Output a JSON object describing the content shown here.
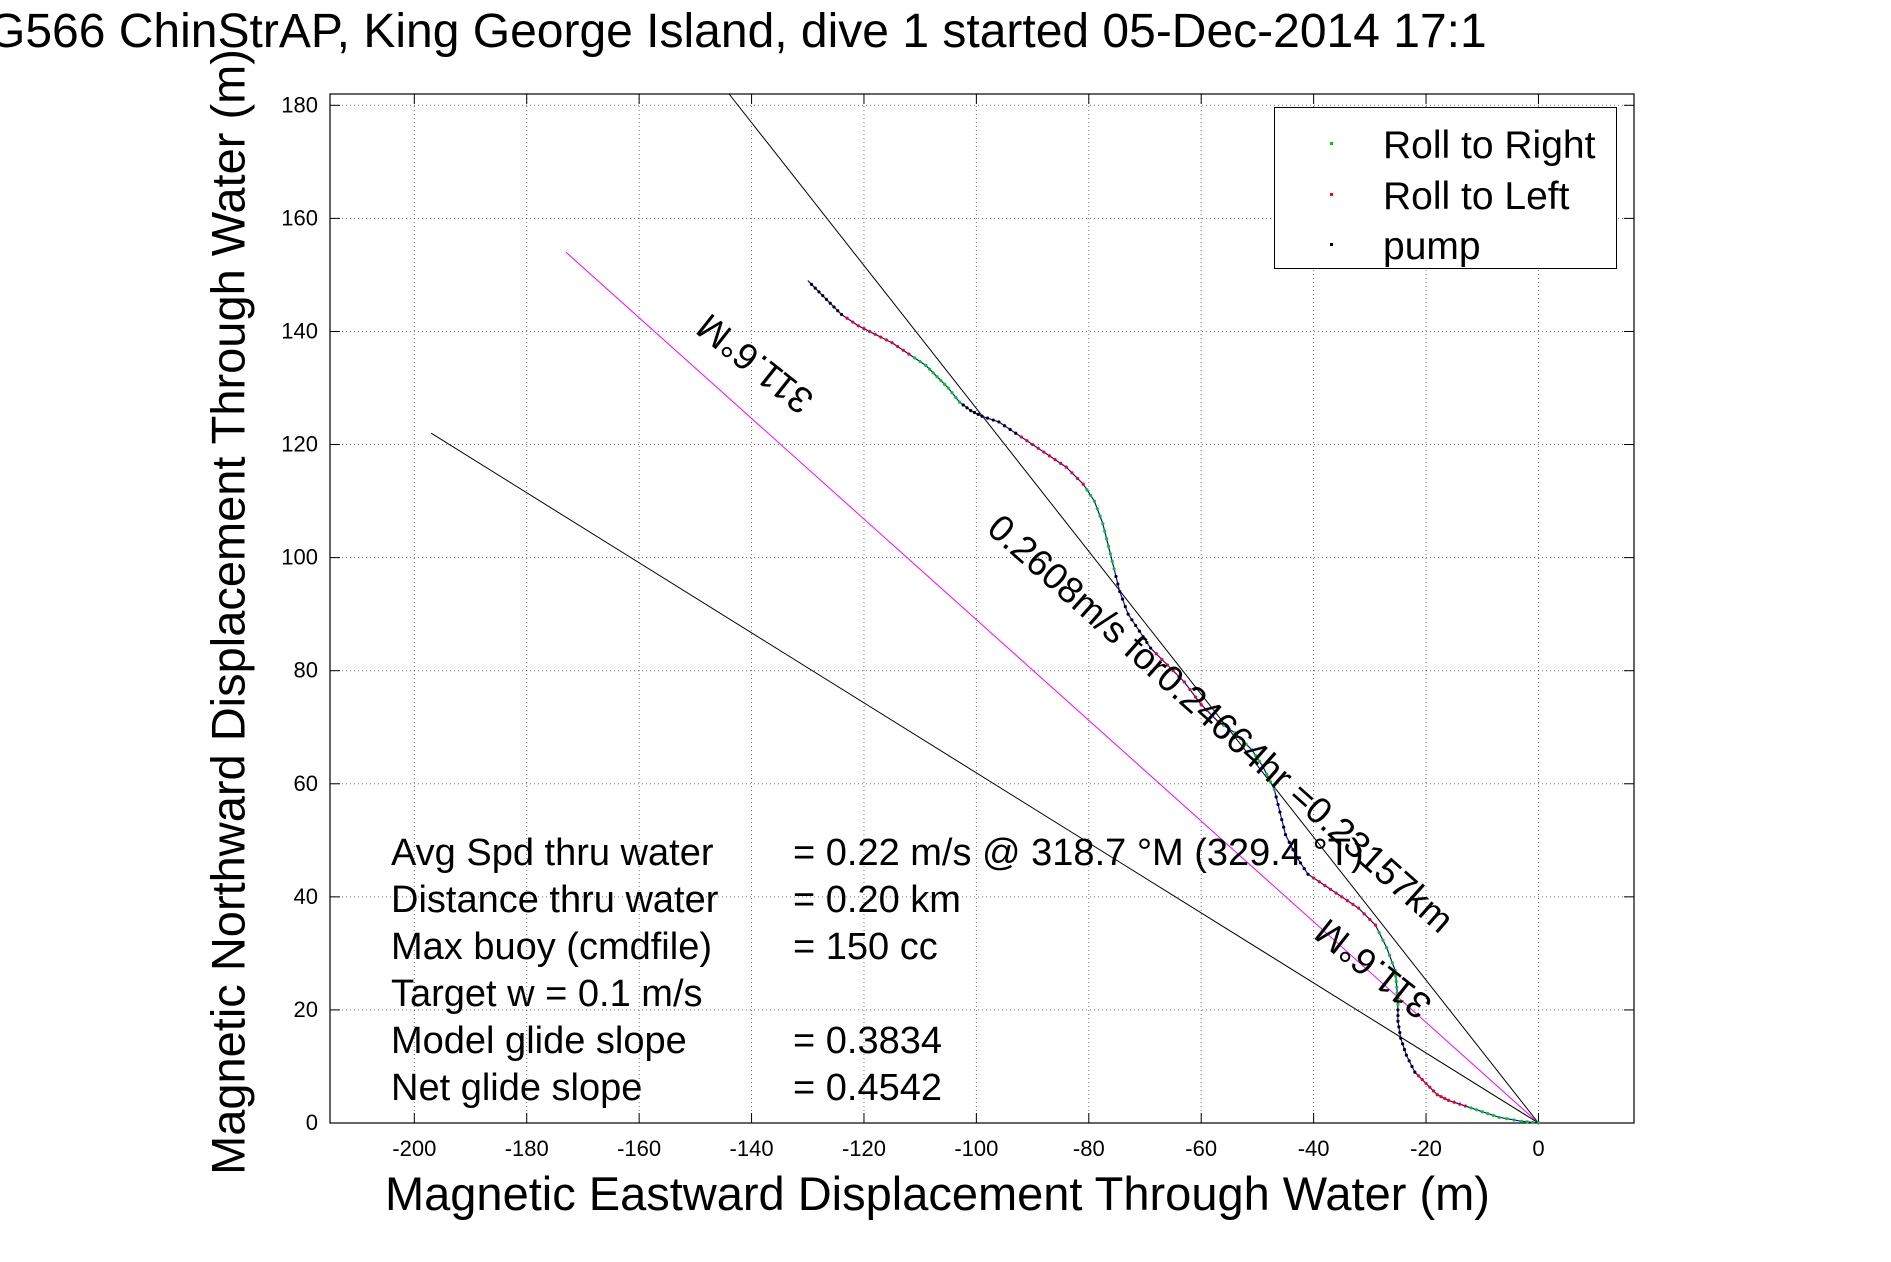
{
  "title": "G566 ChinStrAP, King George Island, dive 1 started 05-Dec-2014 17:1",
  "chart_data": {
    "type": "scatter",
    "title": "G566 ChinStrAP, King George Island, dive 1 started 05-Dec-2014 17:1",
    "xlabel": "Magnetic Eastward Displacement Through Water (m)",
    "ylabel": "Magnetic Northward Displacement Through Water (m)",
    "xlim": [
      -215,
      17
    ],
    "ylim": [
      0,
      182
    ],
    "xticks": [
      -200,
      -180,
      -160,
      -140,
      -120,
      -100,
      -80,
      -60,
      -40,
      -20,
      0
    ],
    "yticks": [
      0,
      20,
      40,
      60,
      80,
      100,
      120,
      140,
      160,
      180
    ],
    "grid": true,
    "legend_position": "top-right",
    "series": [
      {
        "name": "Roll to Right",
        "color": "#00cc00",
        "marker": "."
      },
      {
        "name": "Roll to Left",
        "color": "#ff0000",
        "marker": "."
      },
      {
        "name": "pump",
        "color": "#000000",
        "marker": "."
      }
    ],
    "track": {
      "color": "#0000ff",
      "points": [
        [
          0,
          0
        ],
        [
          -3,
          0.3
        ],
        [
          -7,
          1
        ],
        [
          -10,
          2
        ],
        [
          -13,
          3
        ],
        [
          -16,
          4
        ],
        [
          -18,
          5
        ],
        [
          -20,
          7
        ],
        [
          -22,
          9
        ],
        [
          -23.5,
          12
        ],
        [
          -24.5,
          15
        ],
        [
          -25,
          18
        ],
        [
          -25,
          21
        ],
        [
          -25.2,
          24
        ],
        [
          -25.5,
          27
        ],
        [
          -27,
          31
        ],
        [
          -29,
          35
        ],
        [
          -32,
          38
        ],
        [
          -35,
          40
        ],
        [
          -38,
          42
        ],
        [
          -41,
          44
        ],
        [
          -43,
          47
        ],
        [
          -45,
          51
        ],
        [
          -46,
          55
        ],
        [
          -47,
          59
        ],
        [
          -49,
          63
        ],
        [
          -51,
          66
        ],
        [
          -54,
          69
        ],
        [
          -57,
          71
        ],
        [
          -60,
          74
        ],
        [
          -63,
          78
        ],
        [
          -66,
          81
        ],
        [
          -69,
          84
        ],
        [
          -71,
          87
        ],
        [
          -73,
          90
        ],
        [
          -74.5,
          94
        ],
        [
          -75.5,
          98
        ],
        [
          -76.5,
          102
        ],
        [
          -77.5,
          106
        ],
        [
          -79,
          110
        ],
        [
          -81,
          113
        ],
        [
          -84,
          116
        ],
        [
          -87,
          118
        ],
        [
          -90,
          120
        ],
        [
          -93,
          122
        ],
        [
          -96,
          124
        ],
        [
          -99,
          125
        ],
        [
          -101,
          126
        ],
        [
          -103,
          127.5
        ],
        [
          -105,
          130
        ],
        [
          -107,
          132
        ],
        [
          -109,
          134
        ],
        [
          -112,
          136
        ],
        [
          -115,
          138
        ],
        [
          -118,
          139.5
        ],
        [
          -121,
          141
        ],
        [
          -124,
          143
        ],
        [
          -126,
          145
        ],
        [
          -128,
          147
        ],
        [
          -130,
          149
        ]
      ]
    },
    "reference_lines": [
      {
        "x": [
          0,
          -144
        ],
        "y": [
          0,
          182
        ],
        "color": "#000000"
      },
      {
        "x": [
          0,
          -173
        ],
        "y": [
          0,
          154
        ],
        "color": "#ff00ff"
      },
      {
        "x": [
          0,
          -197
        ],
        "y": [
          0,
          122
        ],
        "color": "#000000"
      }
    ],
    "line_labels": [
      {
        "text": "311.6°M",
        "angle": 218.4
      },
      {
        "text": "0.2608m/s for0.24664hr =0.23157km",
        "angle": 41.6
      },
      {
        "text": "311.6°M",
        "angle": 218.4
      }
    ]
  },
  "legend": [
    {
      "label": "Roll to Right",
      "color": "#00cc00"
    },
    {
      "label": "Roll to Left",
      "color": "#ff0000"
    },
    {
      "label": "pump",
      "color": "#000000"
    }
  ],
  "stats": {
    "avg_label": "Avg Spd thru water",
    "avg_value": "=  0.22 m/s @ 318.7 °M (329.4 °T)",
    "dist_label": "Distance thru water",
    "dist_value": "=  0.20 km",
    "buoy_label": "Max buoy (cmdfile)",
    "buoy_value": "= 150 cc",
    "target_text": "Target w    = 0.1 m/s",
    "model_label": "Model glide slope",
    "model_value": "= 0.3834",
    "net_label": "Net glide slope",
    "net_value": "= 0.4542"
  }
}
